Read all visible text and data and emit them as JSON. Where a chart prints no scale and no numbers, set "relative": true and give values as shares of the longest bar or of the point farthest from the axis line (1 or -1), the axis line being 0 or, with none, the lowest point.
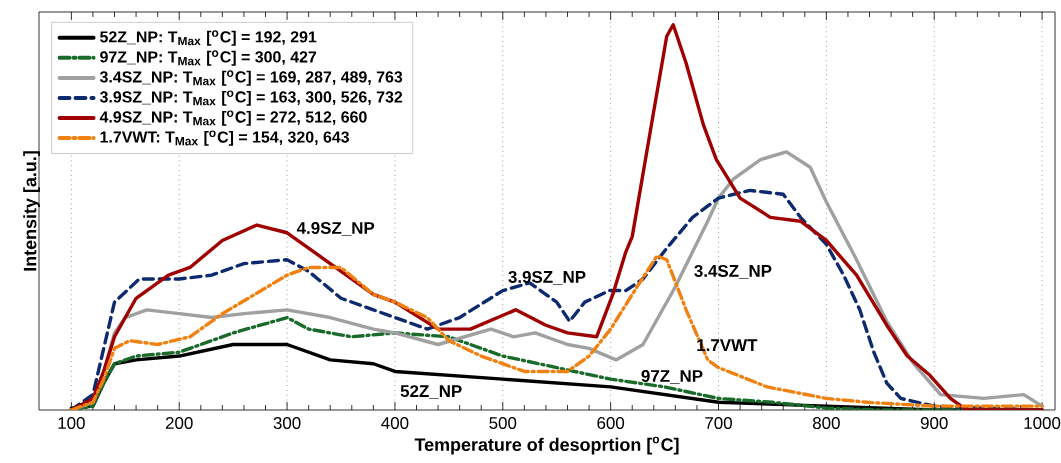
{
  "chart_data": {
    "type": "line",
    "relative": true,
    "xlabel": "Temperature of desoprtion [$^{o}$C]",
    "ylabel": "Intensity [a.u.]",
    "xlim": [
      70,
      1012
    ],
    "xticks": [
      100,
      200,
      300,
      400,
      500,
      600,
      700,
      800,
      900,
      1000
    ],
    "grid": "x",
    "legend": "top left",
    "series": [
      {
        "name": "52Z_NP: T$_{Max}$ [$^{o}$C] = 192, 291",
        "color": "#000000",
        "line_style": "solid",
        "x": [
          100,
          120,
          130,
          140,
          160,
          200,
          250,
          290,
          300,
          340,
          380,
          400,
          500,
          600,
          700,
          800,
          900,
          1000
        ],
        "values": [
          0.005,
          0.01,
          0.07,
          0.12,
          0.13,
          0.14,
          0.17,
          0.17,
          0.17,
          0.13,
          0.12,
          0.1,
          0.08,
          0.06,
          0.02,
          0.01,
          0.0,
          0.0
        ]
      },
      {
        "name": "97Z_NP: T$_{Max}$ [$^{o}$C] = 300, 427",
        "color": "#1a6b2a",
        "line_style": "dashdot",
        "x": [
          100,
          120,
          130,
          140,
          160,
          200,
          250,
          300,
          320,
          360,
          400,
          450,
          500,
          550,
          600,
          650,
          700,
          750,
          800,
          850,
          1000
        ],
        "values": [
          0.0,
          0.01,
          0.07,
          0.12,
          0.14,
          0.15,
          0.2,
          0.24,
          0.21,
          0.19,
          0.2,
          0.19,
          0.14,
          0.11,
          0.08,
          0.06,
          0.03,
          0.02,
          0.005,
          0.0,
          0.0
        ]
      },
      {
        "name": "3.4SZ_NP: T$_{Max}$ [$^{o}$C] = 169, 287, 489, 763",
        "color": "#a0a0a0",
        "line_style": "solid",
        "x": [
          100,
          120,
          130,
          140,
          150,
          170,
          200,
          230,
          260,
          300,
          340,
          380,
          400,
          440,
          489,
          510,
          530,
          560,
          580,
          605,
          630,
          660,
          690,
          700,
          714,
          739,
          763,
          785,
          800,
          828,
          856,
          881,
          906,
          946,
          983,
          1000
        ],
        "values": [
          0.0,
          0.02,
          0.1,
          0.2,
          0.24,
          0.26,
          0.25,
          0.24,
          0.25,
          0.26,
          0.24,
          0.21,
          0.2,
          0.17,
          0.21,
          0.19,
          0.2,
          0.17,
          0.16,
          0.13,
          0.17,
          0.32,
          0.49,
          0.55,
          0.6,
          0.65,
          0.67,
          0.63,
          0.54,
          0.39,
          0.23,
          0.12,
          0.04,
          0.03,
          0.04,
          0.01
        ]
      },
      {
        "name": "3.9SZ_NP: T$_{Max}$ [$^{o}$C] = 163, 300, 526, 732",
        "color": "#0d2a6e",
        "line_style": "dashed",
        "x": [
          100,
          120,
          130,
          140,
          163,
          200,
          230,
          260,
          300,
          320,
          350,
          380,
          400,
          430,
          460,
          500,
          525,
          550,
          562,
          576,
          599,
          614,
          630,
          652,
          676,
          700,
          729,
          760,
          776,
          800,
          816,
          831,
          844,
          856,
          869,
          900,
          1000
        ],
        "values": [
          0.0,
          0.04,
          0.16,
          0.28,
          0.34,
          0.34,
          0.35,
          0.38,
          0.39,
          0.36,
          0.29,
          0.26,
          0.24,
          0.21,
          0.24,
          0.31,
          0.33,
          0.28,
          0.23,
          0.28,
          0.31,
          0.31,
          0.34,
          0.42,
          0.5,
          0.55,
          0.57,
          0.56,
          0.5,
          0.43,
          0.35,
          0.26,
          0.15,
          0.07,
          0.03,
          0.01,
          0.0
        ]
      },
      {
        "name": "4.9SZ_NP: T$_{Max}$ [$^{o}$C] = 272, 512, 660",
        "color": "#a00000",
        "line_style": "solid",
        "x": [
          100,
          120,
          130,
          140,
          160,
          190,
          210,
          240,
          272,
          300,
          340,
          380,
          400,
          440,
          470,
          512,
          540,
          560,
          587,
          602,
          614,
          620,
          639,
          652,
          658,
          670,
          686,
          698,
          720,
          748,
          776,
          800,
          828,
          856,
          875,
          896,
          915,
          930,
          1000
        ],
        "values": [
          0.0,
          0.03,
          0.1,
          0.19,
          0.29,
          0.35,
          0.37,
          0.44,
          0.48,
          0.46,
          0.38,
          0.3,
          0.28,
          0.21,
          0.21,
          0.26,
          0.22,
          0.2,
          0.19,
          0.3,
          0.41,
          0.45,
          0.76,
          0.97,
          1.0,
          0.9,
          0.74,
          0.65,
          0.55,
          0.5,
          0.49,
          0.44,
          0.35,
          0.22,
          0.14,
          0.09,
          0.03,
          0.0,
          0.0
        ]
      },
      {
        "name": "1.7VWT: T$_{Max}$ [$^{o}$C] = 154, 320, 643",
        "color": "#f08010",
        "line_style": "dashdot",
        "x": [
          100,
          120,
          130,
          140,
          154,
          180,
          210,
          240,
          270,
          300,
          320,
          350,
          380,
          400,
          430,
          450,
          480,
          520,
          560,
          580,
          600,
          620,
          643,
          652,
          670,
          690,
          700,
          745,
          800,
          838,
          900,
          1000
        ],
        "values": [
          0.0,
          0.02,
          0.08,
          0.16,
          0.18,
          0.17,
          0.19,
          0.25,
          0.3,
          0.35,
          0.37,
          0.37,
          0.3,
          0.28,
          0.24,
          0.18,
          0.14,
          0.1,
          0.1,
          0.14,
          0.21,
          0.3,
          0.4,
          0.39,
          0.26,
          0.13,
          0.11,
          0.06,
          0.03,
          0.02,
          0.01,
          0.01
        ]
      }
    ],
    "annotations": [
      "4.9SZ_NP",
      "3.9SZ_NP",
      "3.4SZ_NP",
      "1.7VWT",
      "97Z_NP",
      "52Z_NP"
    ]
  }
}
